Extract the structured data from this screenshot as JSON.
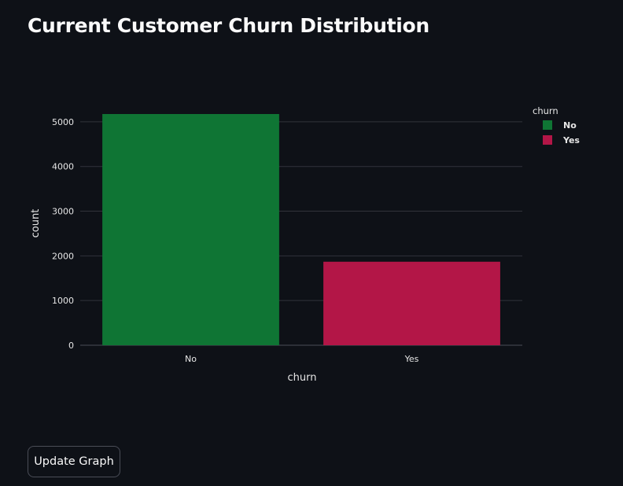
{
  "page": {
    "title": "Current Customer Churn Distribution"
  },
  "chart_data": {
    "type": "bar",
    "categories": [
      "No",
      "Yes"
    ],
    "values": [
      5174,
      1869
    ],
    "colors": [
      "#0f7534",
      "#b31647"
    ],
    "xlabel": "churn",
    "ylabel": "count",
    "ylim": [
      0,
      5174
    ],
    "yticks": [
      0,
      1000,
      2000,
      3000,
      4000,
      5000
    ],
    "grid": true,
    "legend": {
      "title": "churn",
      "placement": "top-right",
      "entries": [
        "No",
        "Yes"
      ]
    }
  },
  "controls": {
    "update_label": "Update Graph"
  }
}
